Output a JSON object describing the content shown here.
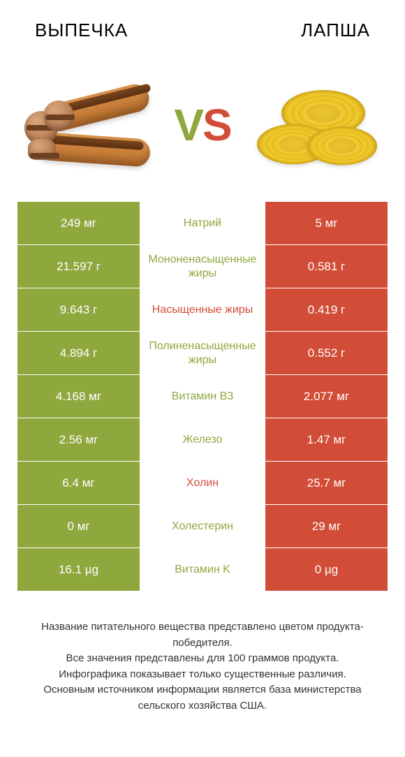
{
  "colors": {
    "left": "#8ea83e",
    "right": "#d24d38",
    "text": "#333333",
    "white": "#ffffff"
  },
  "header": {
    "left_title": "ВЫПЕЧКА",
    "right_title": "ЛАПША",
    "vs_v": "V",
    "vs_s": "S"
  },
  "rows": [
    {
      "left": "249 мг",
      "label": "Натрий",
      "right": "5 мг",
      "winner": "left"
    },
    {
      "left": "21.597 г",
      "label": "Мононенасыщенные жиры",
      "right": "0.581 г",
      "winner": "left"
    },
    {
      "left": "9.643 г",
      "label": "Насыщенные жиры",
      "right": "0.419 г",
      "winner": "right"
    },
    {
      "left": "4.894 г",
      "label": "Полиненасыщенные жиры",
      "right": "0.552 г",
      "winner": "left"
    },
    {
      "left": "4.168 мг",
      "label": "Витамин B3",
      "right": "2.077 мг",
      "winner": "left"
    },
    {
      "left": "2.56 мг",
      "label": "Железо",
      "right": "1.47 мг",
      "winner": "left"
    },
    {
      "left": "6.4 мг",
      "label": "Холин",
      "right": "25.7 мг",
      "winner": "right"
    },
    {
      "left": "0 мг",
      "label": "Холестерин",
      "right": "29 мг",
      "winner": "left"
    },
    {
      "left": "16.1 µg",
      "label": "Витамин K",
      "right": "0 µg",
      "winner": "left"
    }
  ],
  "footer": {
    "line1": "Название питательного вещества представлено цветом продукта-победителя.",
    "line2": "Все значения представлены для 100 граммов продукта.",
    "line3": "Инфографика показывает только существенные различия.",
    "line4": "Основным источником информации является база министерства сельского хозяйства США."
  }
}
